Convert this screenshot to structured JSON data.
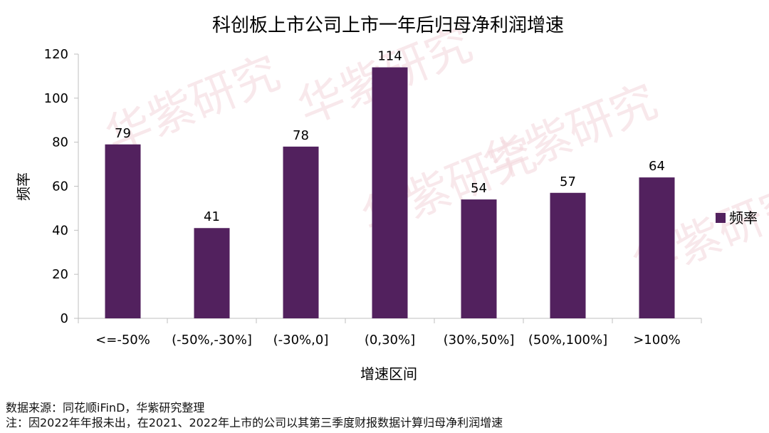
{
  "chart_data": {
    "type": "bar",
    "title": "科创板上市公司上市一年后归母净利润增速",
    "xlabel": "增速区间",
    "ylabel": "频率",
    "categories": [
      "<=-50%",
      "(-50%,-30%]",
      "(-30%,0]",
      "(0,30%]",
      "(30%,50%]",
      "(50%,100%]",
      ">100%"
    ],
    "series": [
      {
        "name": "频率",
        "values": [
          79,
          41,
          78,
          114,
          54,
          57,
          64
        ]
      }
    ],
    "ylim": [
      0,
      120
    ],
    "yticks": [
      0,
      20,
      40,
      60,
      80,
      100,
      120
    ],
    "data_labels": true,
    "grid": false,
    "legend_position": "right",
    "bar_color": "#52215E"
  },
  "watermark": "华紫研究",
  "footer": {
    "source": "数据来源：同花顺iFinD，华紫研究整理",
    "note": "注：因2022年年报未出，在2021、2022年上市的公司以其第三季度财报数据计算归母净利润增速"
  }
}
